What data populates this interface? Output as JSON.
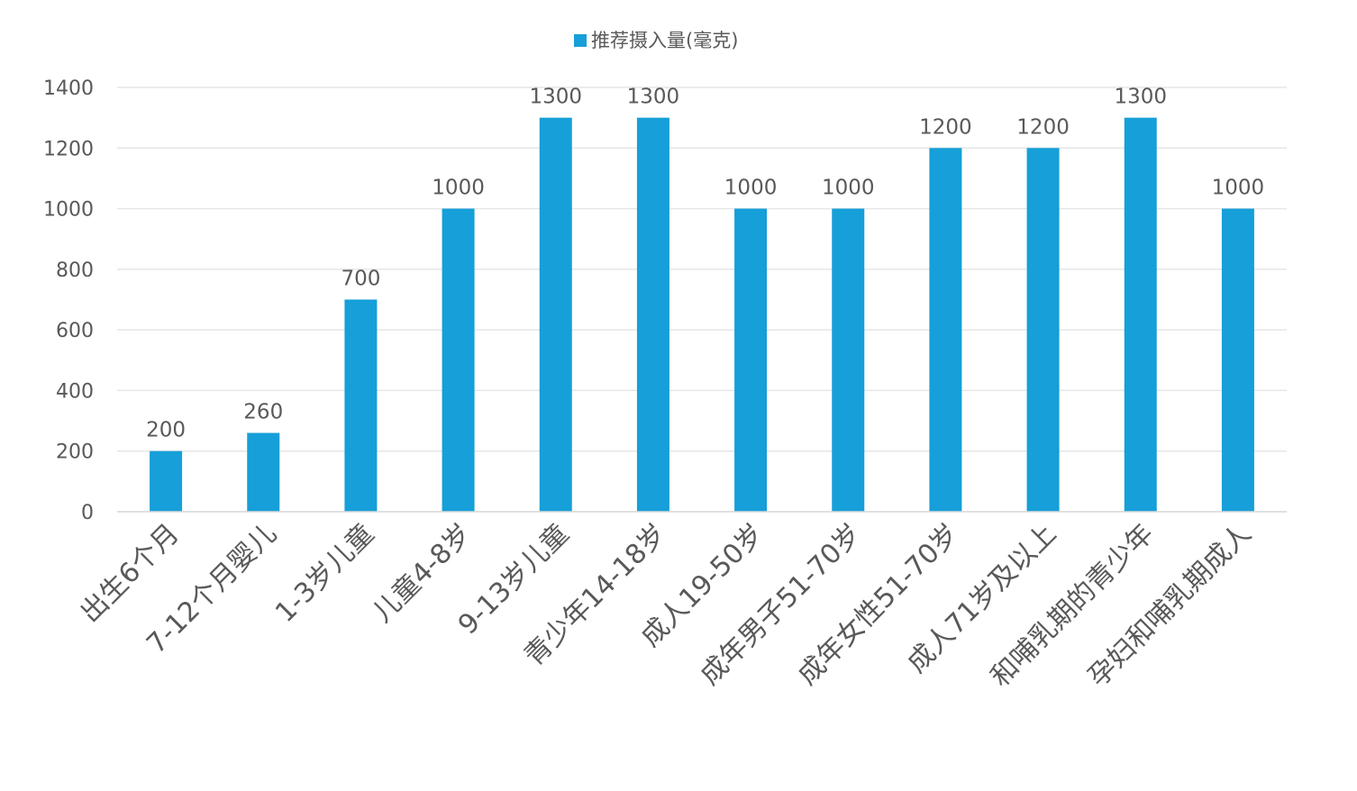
{
  "chart_data": {
    "type": "bar",
    "legend": {
      "position": "top",
      "label": "推荐摄入量(毫克)"
    },
    "series": [
      {
        "name": "推荐摄入量(毫克)",
        "color": "#169fd8",
        "values": [
          200,
          260,
          700,
          1000,
          1300,
          1300,
          1000,
          1000,
          1200,
          1200,
          1300,
          1000
        ]
      }
    ],
    "categories": [
      "出生6个月",
      "7-12个月婴儿",
      "1-3岁儿童",
      "儿童4-8岁",
      "9-13岁儿童",
      "青少年14-18岁",
      "成人19-50岁",
      "成年男子51-70岁",
      "成年女性51-70岁",
      "成人71岁及以上",
      "和哺乳期的青少年",
      "孕妇和哺乳期成人"
    ],
    "data_labels": [
      "200",
      "260",
      "700",
      "1000",
      "1300",
      "1300",
      "1000",
      "1000",
      "1200",
      "1200",
      "1300",
      "1000"
    ],
    "y_ticks": [
      "0",
      "200",
      "400",
      "600",
      "800",
      "1000",
      "1200",
      "1400"
    ],
    "ylim": [
      0,
      1400
    ],
    "grid": true,
    "colors": {
      "gridline": "#e6e6e6",
      "text": "#595959"
    }
  }
}
